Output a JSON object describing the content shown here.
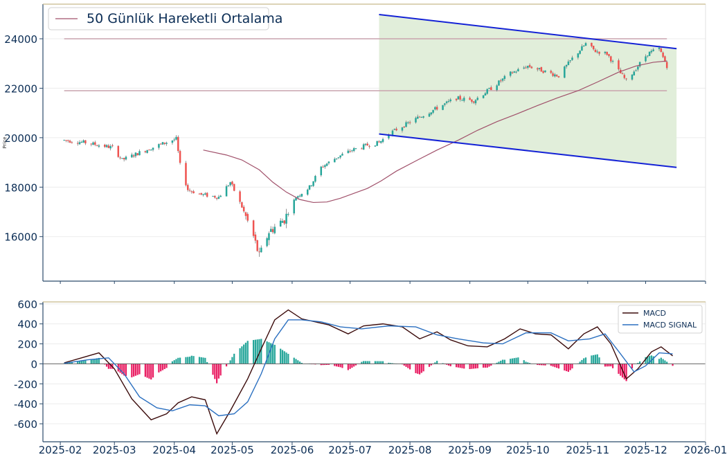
{
  "chart_data": [
    {
      "type": "candlestick",
      "ylabel": "Price",
      "ylim": [
        14200,
        25400
      ],
      "yticks": [
        16000,
        18000,
        20000,
        22000,
        24000
      ],
      "legend": {
        "position": "top-left",
        "entries": [
          {
            "label": "50 Günlük Hareketli Ortalama",
            "color": "#a0506a"
          }
        ]
      },
      "ohlc_series": {
        "up_color": "#26a69a",
        "down_color": "#ef5350",
        "note_dates": "trading days from 2025-02-03 to 2025-12-12",
        "anchors": [
          [
            "2025-02-03",
            19900
          ],
          [
            "2025-02-14",
            19800
          ],
          [
            "2025-02-28",
            19600
          ],
          [
            "2025-03-05",
            19100
          ],
          [
            "2025-03-14",
            19400
          ],
          [
            "2025-03-24",
            19700
          ],
          [
            "2025-03-31",
            19900
          ],
          [
            "2025-04-02",
            19950
          ],
          [
            "2025-04-04",
            18900
          ],
          [
            "2025-04-08",
            17900
          ],
          [
            "2025-04-15",
            17700
          ],
          [
            "2025-04-24",
            17600
          ],
          [
            "2025-04-30",
            18200
          ],
          [
            "2025-05-06",
            17200
          ],
          [
            "2025-05-12",
            16000
          ],
          [
            "2025-05-15",
            15200
          ],
          [
            "2025-05-20",
            16200
          ],
          [
            "2025-05-28",
            16700
          ],
          [
            "2025-06-03",
            17600
          ],
          [
            "2025-06-10",
            18000
          ],
          [
            "2025-06-16",
            18800
          ],
          [
            "2025-06-24",
            19200
          ],
          [
            "2025-07-02",
            19500
          ],
          [
            "2025-07-10",
            19700
          ],
          [
            "2025-07-16",
            19800
          ],
          [
            "2025-07-22",
            20200
          ],
          [
            "2025-08-05",
            20800
          ],
          [
            "2025-08-15",
            21200
          ],
          [
            "2025-08-25",
            21600
          ],
          [
            "2025-09-03",
            21500
          ],
          [
            "2025-09-12",
            22000
          ],
          [
            "2025-09-22",
            22600
          ],
          [
            "2025-10-01",
            22900
          ],
          [
            "2025-10-09",
            22700
          ],
          [
            "2025-10-17",
            22500
          ],
          [
            "2025-10-24",
            23200
          ],
          [
            "2025-10-31",
            23800
          ],
          [
            "2025-11-05",
            23500
          ],
          [
            "2025-11-11",
            23400
          ],
          [
            "2025-11-17",
            22700
          ],
          [
            "2025-11-21",
            22300
          ],
          [
            "2025-11-26",
            22800
          ],
          [
            "2025-12-02",
            23400
          ],
          [
            "2025-12-08",
            23600
          ],
          [
            "2025-12-12",
            22900
          ]
        ]
      },
      "moving_average_50": [
        [
          "2025-04-16",
          19500
        ],
        [
          "2025-04-28",
          19300
        ],
        [
          "2025-05-06",
          19100
        ],
        [
          "2025-05-15",
          18700
        ],
        [
          "2025-05-22",
          18200
        ],
        [
          "2025-05-29",
          17800
        ],
        [
          "2025-06-05",
          17500
        ],
        [
          "2025-06-12",
          17380
        ],
        [
          "2025-06-19",
          17400
        ],
        [
          "2025-06-26",
          17550
        ],
        [
          "2025-07-03",
          17750
        ],
        [
          "2025-07-10",
          17950
        ],
        [
          "2025-07-17",
          18250
        ],
        [
          "2025-07-25",
          18650
        ],
        [
          "2025-08-05",
          19100
        ],
        [
          "2025-08-15",
          19500
        ],
        [
          "2025-08-26",
          19900
        ],
        [
          "2025-09-05",
          20300
        ],
        [
          "2025-09-15",
          20650
        ],
        [
          "2025-09-25",
          20950
        ],
        [
          "2025-10-06",
          21300
        ],
        [
          "2025-10-16",
          21600
        ],
        [
          "2025-10-27",
          21900
        ],
        [
          "2025-11-06",
          22250
        ],
        [
          "2025-11-17",
          22650
        ],
        [
          "2025-11-26",
          22900
        ],
        [
          "2025-12-05",
          23050
        ],
        [
          "2025-12-12",
          23100
        ]
      ],
      "horizontal_lines": [
        {
          "y": 24000,
          "from": "2025-02-03",
          "to": "2025-12-12",
          "color": "#c9a3ad"
        },
        {
          "y": 21900,
          "from": "2025-02-03",
          "to": "2025-12-12",
          "color": "#c9a3ad"
        }
      ],
      "channel": {
        "fill": "#e1eeda",
        "upper": [
          [
            "2025-07-16",
            24980
          ],
          [
            "2025-12-17",
            23600
          ]
        ],
        "lower": [
          [
            "2025-07-16",
            20150
          ],
          [
            "2025-12-17",
            18800
          ]
        ],
        "line_color": "#1422d6"
      }
    },
    {
      "type": "macd",
      "ylim": [
        -780,
        620
      ],
      "yticks": [
        -600,
        -400,
        -200,
        0,
        200,
        400,
        600
      ],
      "xlim": [
        "2025-01-23",
        "2026-01-01"
      ],
      "xticks": [
        "2025-02",
        "2025-03",
        "2025-04",
        "2025-05",
        "2025-06",
        "2025-07",
        "2025-08",
        "2025-09",
        "2025-10",
        "2025-11",
        "2025-12",
        "2026-01"
      ],
      "legend": {
        "position": "top-right",
        "entries": [
          {
            "label": "MACD",
            "color": "#3a0a0a"
          },
          {
            "label": "MACD SIGNAL",
            "color": "#2a6fc0"
          }
        ]
      },
      "histogram_colors": {
        "positive": "#26a69a",
        "negative": "#e91e63"
      },
      "macd": [
        [
          "2025-02-03",
          10
        ],
        [
          "2025-02-12",
          60
        ],
        [
          "2025-02-21",
          110
        ],
        [
          "2025-03-01",
          -50
        ],
        [
          "2025-03-10",
          -350
        ],
        [
          "2025-03-20",
          -560
        ],
        [
          "2025-03-28",
          -500
        ],
        [
          "2025-04-03",
          -390
        ],
        [
          "2025-04-10",
          -330
        ],
        [
          "2025-04-17",
          -360
        ],
        [
          "2025-04-23",
          -700
        ],
        [
          "2025-04-30",
          -470
        ],
        [
          "2025-05-09",
          -150
        ],
        [
          "2025-05-16",
          150
        ],
        [
          "2025-05-23",
          440
        ],
        [
          "2025-05-30",
          540
        ],
        [
          "2025-06-06",
          450
        ],
        [
          "2025-06-13",
          420
        ],
        [
          "2025-06-20",
          390
        ],
        [
          "2025-06-30",
          300
        ],
        [
          "2025-07-08",
          380
        ],
        [
          "2025-07-18",
          400
        ],
        [
          "2025-07-28",
          370
        ],
        [
          "2025-08-06",
          250
        ],
        [
          "2025-08-15",
          320
        ],
        [
          "2025-08-22",
          240
        ],
        [
          "2025-08-31",
          180
        ],
        [
          "2025-09-10",
          170
        ],
        [
          "2025-09-19",
          250
        ],
        [
          "2025-09-27",
          350
        ],
        [
          "2025-10-05",
          300
        ],
        [
          "2025-10-13",
          290
        ],
        [
          "2025-10-22",
          150
        ],
        [
          "2025-10-30",
          300
        ],
        [
          "2025-11-06",
          370
        ],
        [
          "2025-11-13",
          200
        ],
        [
          "2025-11-21",
          -150
        ],
        [
          "2025-11-27",
          -50
        ],
        [
          "2025-12-04",
          120
        ],
        [
          "2025-12-09",
          170
        ],
        [
          "2025-12-15",
          80
        ]
      ],
      "signal": [
        [
          "2025-02-03",
          5
        ],
        [
          "2025-02-15",
          40
        ],
        [
          "2025-02-26",
          60
        ],
        [
          "2025-03-06",
          -100
        ],
        [
          "2025-03-14",
          -330
        ],
        [
          "2025-03-23",
          -440
        ],
        [
          "2025-03-31",
          -470
        ],
        [
          "2025-04-09",
          -410
        ],
        [
          "2025-04-17",
          -420
        ],
        [
          "2025-04-24",
          -520
        ],
        [
          "2025-05-02",
          -500
        ],
        [
          "2025-05-09",
          -380
        ],
        [
          "2025-05-16",
          -100
        ],
        [
          "2025-05-23",
          250
        ],
        [
          "2025-05-30",
          440
        ],
        [
          "2025-06-06",
          440
        ],
        [
          "2025-06-16",
          420
        ],
        [
          "2025-06-26",
          370
        ],
        [
          "2025-07-07",
          350
        ],
        [
          "2025-07-21",
          380
        ],
        [
          "2025-08-04",
          370
        ],
        [
          "2025-08-15",
          290
        ],
        [
          "2025-08-26",
          250
        ],
        [
          "2025-09-08",
          210
        ],
        [
          "2025-09-18",
          200
        ],
        [
          "2025-09-30",
          310
        ],
        [
          "2025-10-13",
          310
        ],
        [
          "2025-10-22",
          230
        ],
        [
          "2025-11-02",
          250
        ],
        [
          "2025-11-10",
          300
        ],
        [
          "2025-11-18",
          100
        ],
        [
          "2025-11-25",
          -80
        ],
        [
          "2025-12-01",
          -20
        ],
        [
          "2025-12-08",
          110
        ],
        [
          "2025-12-15",
          100
        ]
      ]
    }
  ]
}
